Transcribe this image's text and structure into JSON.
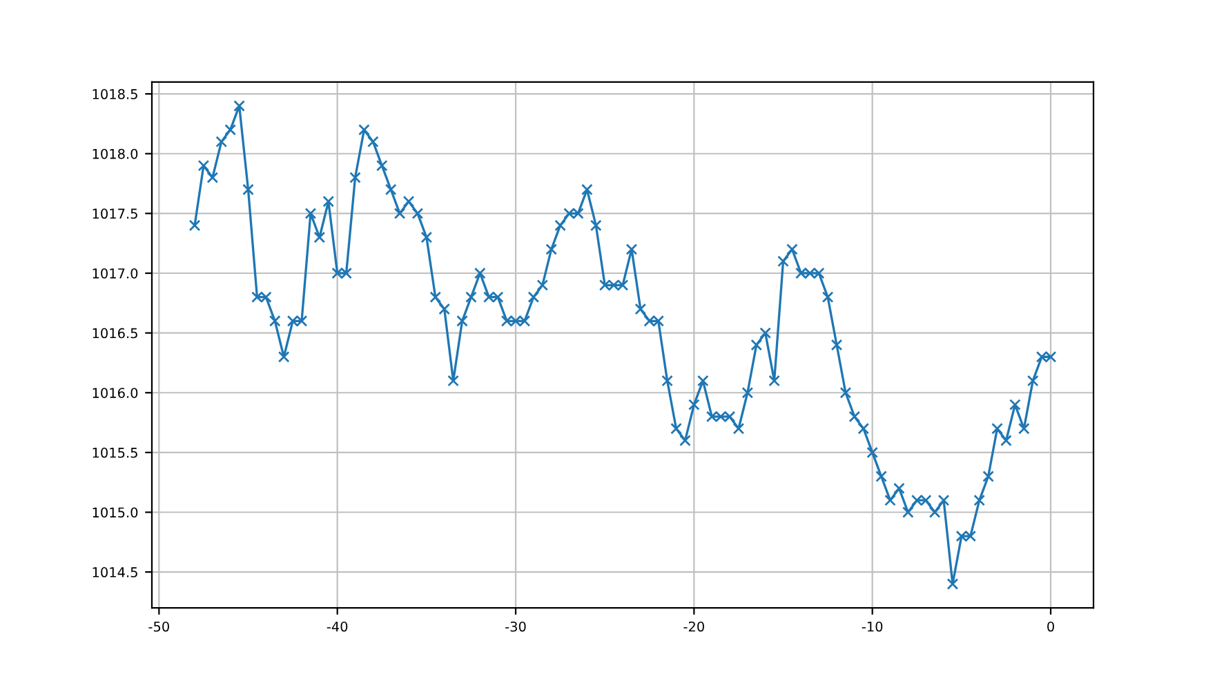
{
  "chart_data": {
    "type": "line",
    "x": [
      -48,
      -47.5,
      -47,
      -46.5,
      -46,
      -45.5,
      -45,
      -44.5,
      -44,
      -43.5,
      -43,
      -42.5,
      -42,
      -41.5,
      -41,
      -40.5,
      -40,
      -39.5,
      -39,
      -38.5,
      -38,
      -37.5,
      -37,
      -36.5,
      -36,
      -35.5,
      -35,
      -34.5,
      -34,
      -33.5,
      -33,
      -32.5,
      -32,
      -31.5,
      -31,
      -30.5,
      -30,
      -29.5,
      -29,
      -28.5,
      -28,
      -27.5,
      -27,
      -26.5,
      -26,
      -25.5,
      -25,
      -24.5,
      -24,
      -23.5,
      -23,
      -22.5,
      -22,
      -21.5,
      -21,
      -20.5,
      -20,
      -19.5,
      -19,
      -18.5,
      -18,
      -17.5,
      -17,
      -16.5,
      -16,
      -15.5,
      -15,
      -14.5,
      -14,
      -13.5,
      -13,
      -12.5,
      -12,
      -11.5,
      -11,
      -10.5,
      -10,
      -9.5,
      -9,
      -8.5,
      -8,
      -7.5,
      -7,
      -6.5,
      -6,
      -5.5,
      -5,
      -4.5,
      -4,
      -3.5,
      -3,
      -2.5,
      -2,
      -1.5,
      -1,
      -0.5,
      0
    ],
    "series": [
      {
        "color": "#1f77b4",
        "values": [
          1017.4,
          1017.9,
          1017.8,
          1018.1,
          1018.2,
          1018.4,
          1017.7,
          1016.8,
          1016.8,
          1016.6,
          1016.3,
          1016.6,
          1016.6,
          1017.5,
          1017.3,
          1017.6,
          1017.0,
          1017.0,
          1017.8,
          1018.2,
          1018.1,
          1017.9,
          1017.7,
          1017.5,
          1017.6,
          1017.5,
          1017.3,
          1016.8,
          1016.7,
          1016.1,
          1016.6,
          1016.8,
          1017.0,
          1016.8,
          1016.8,
          1016.6,
          1016.6,
          1016.6,
          1016.8,
          1016.9,
          1017.2,
          1017.4,
          1017.5,
          1017.5,
          1017.7,
          1017.4,
          1016.9,
          1016.9,
          1016.9,
          1017.2,
          1016.7,
          1016.6,
          1016.6,
          1016.1,
          1015.7,
          1015.6,
          1015.9,
          1016.1,
          1015.8,
          1015.8,
          1015.8,
          1015.7,
          1016.0,
          1016.4,
          1016.5,
          1016.1,
          1017.1,
          1017.2,
          1017.0,
          1017.0,
          1017.0,
          1016.8,
          1016.4,
          1016.0,
          1015.8,
          1015.7,
          1015.5,
          1015.3,
          1015.1,
          1015.2,
          1015.0,
          1015.1,
          1015.1,
          1015.0,
          1015.1,
          1014.4,
          1014.8,
          1014.8,
          1015.1,
          1015.3,
          1015.7,
          1015.6,
          1015.9,
          1015.7,
          1016.1,
          1016.3,
          1016.3
        ]
      }
    ],
    "xlim": [
      -50.4,
      2.4
    ],
    "xticks": [
      -50,
      -40,
      -30,
      -20,
      -10,
      0
    ],
    "ylim": [
      1014.2,
      1018.6
    ],
    "yticks": [
      1014.5,
      {
        "value": 1015,
        "label": "1015.0"
      },
      1015.5,
      {
        "value": 1016,
        "label": "1016.0"
      },
      1016.5,
      {
        "value": 1017,
        "label": "1017.0"
      },
      1017.5,
      {
        "value": 1018,
        "label": "1018.0"
      },
      1018.5
    ],
    "grid": true,
    "marker": "cross",
    "line_style": "solid",
    "legend": false
  }
}
